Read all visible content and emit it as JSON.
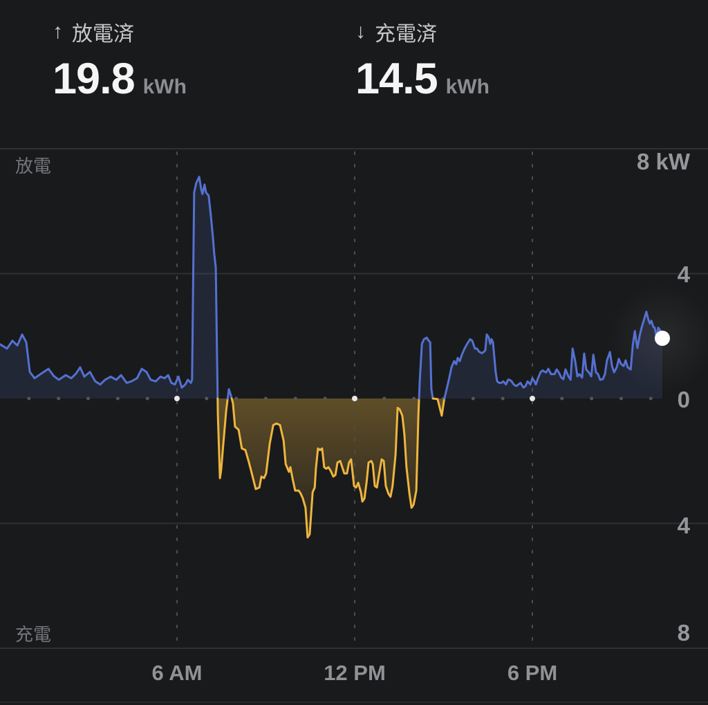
{
  "header": {
    "stats": [
      {
        "arrow": "↑",
        "label": "放電済",
        "value": "19.8",
        "unit": "kWh"
      },
      {
        "arrow": "↓",
        "label": "充電済",
        "value": "14.5",
        "unit": "kWh"
      }
    ]
  },
  "chart": {
    "region_labels": {
      "top": "放電",
      "bottom": "充電"
    },
    "y_axis_labels": [
      "8 kW",
      "4",
      "0",
      "4",
      "8"
    ],
    "x_axis_labels": [
      "6 AM",
      "12 PM",
      "6 PM"
    ]
  },
  "chart_data": {
    "type": "area",
    "unit": "kW",
    "x_axis": {
      "unit": "hours",
      "range": [
        0,
        24
      ],
      "ticks": [
        {
          "hour": 6,
          "label": "6 AM"
        },
        {
          "hour": 12,
          "label": "12 PM"
        },
        {
          "hour": 18,
          "label": "6 PM"
        }
      ]
    },
    "y_axis": {
      "range": [
        -8,
        8
      ],
      "gridlines_kw": [
        8,
        4,
        0,
        -4,
        -8
      ],
      "labels": [
        "8 kW",
        "4",
        "0",
        "4",
        "8"
      ]
    },
    "current_point": {
      "hour": 22.39,
      "kw": 1.93
    },
    "colors": {
      "discharge": "#5571d0",
      "discharge_fill": "rgba(85,113,208,0.15)",
      "charge": "#eeb63e",
      "grid": "#2e3033",
      "dotted": "#4b4d52",
      "zero_dot": "#54565b",
      "zero_dot_major": "#e9e9ea",
      "current_dot": "#ffffff"
    },
    "series": [
      {
        "name": "battery_power_kw",
        "points": [
          [
            0,
            1.75
          ],
          [
            0.26,
            1.6
          ],
          [
            0.44,
            1.85
          ],
          [
            0.61,
            1.7
          ],
          [
            0.77,
            2.05
          ],
          [
            0.91,
            1.8
          ],
          [
            1.03,
            0.85
          ],
          [
            1.19,
            0.65
          ],
          [
            1.42,
            0.8
          ],
          [
            1.66,
            0.95
          ],
          [
            1.84,
            0.72
          ],
          [
            2.01,
            0.6
          ],
          [
            2.24,
            0.75
          ],
          [
            2.43,
            0.65
          ],
          [
            2.59,
            0.8
          ],
          [
            2.73,
            1
          ],
          [
            2.87,
            0.7
          ],
          [
            3.06,
            0.85
          ],
          [
            3.24,
            0.55
          ],
          [
            3.41,
            0.45
          ],
          [
            3.57,
            0.6
          ],
          [
            3.76,
            0.7
          ],
          [
            3.95,
            0.6
          ],
          [
            4.11,
            0.75
          ],
          [
            4.3,
            0.5
          ],
          [
            4.46,
            0.55
          ],
          [
            4.65,
            0.65
          ],
          [
            4.81,
            0.95
          ],
          [
            4.97,
            0.85
          ],
          [
            5.11,
            0.6
          ],
          [
            5.28,
            0.55
          ],
          [
            5.44,
            0.7
          ],
          [
            5.58,
            0.65
          ],
          [
            5.7,
            0.75
          ],
          [
            5.81,
            0.5
          ],
          [
            5.93,
            0.45
          ],
          [
            6.05,
            0.7
          ],
          [
            6.16,
            0.35
          ],
          [
            6.28,
            0.45
          ],
          [
            6.37,
            0.6
          ],
          [
            6.47,
            0.5
          ],
          [
            6.51,
            0.6
          ],
          [
            6.58,
            6.6
          ],
          [
            6.65,
            6.9
          ],
          [
            6.75,
            7.1
          ],
          [
            6.82,
            6.7
          ],
          [
            6.86,
            6.55
          ],
          [
            6.93,
            6.85
          ],
          [
            6.98,
            6.6
          ],
          [
            7.07,
            6.5
          ],
          [
            7.14,
            5.9
          ],
          [
            7.21,
            5.2
          ],
          [
            7.26,
            4.6
          ],
          [
            7.31,
            4.2
          ],
          [
            7.35,
            1.5
          ],
          [
            7.38,
            -0.5
          ],
          [
            7.45,
            -2.55
          ],
          [
            7.49,
            -2.3
          ],
          [
            7.56,
            -1.5
          ],
          [
            7.66,
            -0.4
          ],
          [
            7.75,
            0.3
          ],
          [
            7.82,
            0.1
          ],
          [
            7.89,
            -0.15
          ],
          [
            7.96,
            -0.9
          ],
          [
            8.08,
            -1
          ],
          [
            8.19,
            -1.6
          ],
          [
            8.31,
            -1.65
          ],
          [
            8.43,
            -2.05
          ],
          [
            8.54,
            -2.45
          ],
          [
            8.66,
            -2.9
          ],
          [
            8.78,
            -2.85
          ],
          [
            8.85,
            -2.5
          ],
          [
            8.94,
            -2.55
          ],
          [
            9.01,
            -2.4
          ],
          [
            9.13,
            -1.45
          ],
          [
            9.25,
            -0.85
          ],
          [
            9.36,
            -0.8
          ],
          [
            9.48,
            -0.85
          ],
          [
            9.6,
            -1.35
          ],
          [
            9.67,
            -2.1
          ],
          [
            9.78,
            -2.35
          ],
          [
            9.83,
            -2.2
          ],
          [
            9.9,
            -2.55
          ],
          [
            9.99,
            -2.95
          ],
          [
            10.11,
            -2.95
          ],
          [
            10.18,
            -3.05
          ],
          [
            10.25,
            -3.2
          ],
          [
            10.34,
            -3.5
          ],
          [
            10.41,
            -4.45
          ],
          [
            10.48,
            -4.35
          ],
          [
            10.58,
            -3
          ],
          [
            10.65,
            -2.85
          ],
          [
            10.69,
            -2.25
          ],
          [
            10.76,
            -1.6
          ],
          [
            10.83,
            -1.65
          ],
          [
            10.9,
            -1.6
          ],
          [
            10.97,
            -2.2
          ],
          [
            11.04,
            -2.25
          ],
          [
            11.11,
            -2.2
          ],
          [
            11.18,
            -2.3
          ],
          [
            11.28,
            -2.5
          ],
          [
            11.35,
            -2.45
          ],
          [
            11.42,
            -2.05
          ],
          [
            11.51,
            -2
          ],
          [
            11.58,
            -2.2
          ],
          [
            11.65,
            -2.4
          ],
          [
            11.74,
            -2.4
          ],
          [
            11.81,
            -2.05
          ],
          [
            11.88,
            -1.95
          ],
          [
            11.98,
            -2.8
          ],
          [
            12.05,
            -2.85
          ],
          [
            12.12,
            -2.7
          ],
          [
            12.21,
            -3
          ],
          [
            12.26,
            -3.3
          ],
          [
            12.33,
            -3.2
          ],
          [
            12.4,
            -2.7
          ],
          [
            12.47,
            -2.05
          ],
          [
            12.56,
            -2
          ],
          [
            12.61,
            -2.1
          ],
          [
            12.68,
            -2.8
          ],
          [
            12.75,
            -2.85
          ],
          [
            12.82,
            -2.45
          ],
          [
            12.91,
            -1.95
          ],
          [
            12.98,
            -2
          ],
          [
            13.05,
            -2.8
          ],
          [
            13.14,
            -3.05
          ],
          [
            13.21,
            -3.15
          ],
          [
            13.28,
            -2.8
          ],
          [
            13.38,
            -1.8
          ],
          [
            13.45,
            -0.3
          ],
          [
            13.52,
            -0.35
          ],
          [
            13.61,
            -0.55
          ],
          [
            13.68,
            -1.15
          ],
          [
            13.75,
            -2.2
          ],
          [
            13.85,
            -3.05
          ],
          [
            13.92,
            -3.5
          ],
          [
            13.99,
            -3.4
          ],
          [
            14.08,
            -2.95
          ],
          [
            14.15,
            -0.55
          ],
          [
            14.2,
            0.6
          ],
          [
            14.27,
            1.75
          ],
          [
            14.34,
            1.9
          ],
          [
            14.43,
            1.95
          ],
          [
            14.5,
            1.85
          ],
          [
            14.55,
            1.8
          ],
          [
            14.59,
            0.3
          ],
          [
            14.64,
            0
          ],
          [
            14.8,
            -0.02
          ],
          [
            14.94,
            -0.55
          ],
          [
            15.02,
            -0.05
          ],
          [
            15.08,
            0.2
          ],
          [
            15.18,
            0.6
          ],
          [
            15.27,
            1
          ],
          [
            15.36,
            1.2
          ],
          [
            15.43,
            1.1
          ],
          [
            15.48,
            1.3
          ],
          [
            15.55,
            1.2
          ],
          [
            15.62,
            1.4
          ],
          [
            15.71,
            1.6
          ],
          [
            15.83,
            1.8
          ],
          [
            15.9,
            1.9
          ],
          [
            15.97,
            1.85
          ],
          [
            16.06,
            1.6
          ],
          [
            16.13,
            1.6
          ],
          [
            16.2,
            1.5
          ],
          [
            16.3,
            1.45
          ],
          [
            16.37,
            1.5
          ],
          [
            16.41,
            1.55
          ],
          [
            16.46,
            2.05
          ],
          [
            16.53,
            1.95
          ],
          [
            16.58,
            1.75
          ],
          [
            16.62,
            1.9
          ],
          [
            16.67,
            1.8
          ],
          [
            16.76,
            0.85
          ],
          [
            16.81,
            0.55
          ],
          [
            16.88,
            0.5
          ],
          [
            16.95,
            0.5
          ],
          [
            17.02,
            0.55
          ],
          [
            17.11,
            0.45
          ],
          [
            17.18,
            0.6
          ],
          [
            17.23,
            0.6
          ],
          [
            17.3,
            0.55
          ],
          [
            17.37,
            0.45
          ],
          [
            17.46,
            0.4
          ],
          [
            17.53,
            0.45
          ],
          [
            17.6,
            0.5
          ],
          [
            17.7,
            0.35
          ],
          [
            17.77,
            0.4
          ],
          [
            17.84,
            0.55
          ],
          [
            17.93,
            0.45
          ],
          [
            18,
            0.65
          ],
          [
            18.07,
            0.55
          ],
          [
            18.12,
            0.45
          ],
          [
            18.19,
            0.65
          ],
          [
            18.28,
            0.85
          ],
          [
            18.35,
            0.9
          ],
          [
            18.42,
            0.85
          ],
          [
            18.47,
            0.84
          ],
          [
            18.54,
            0.95
          ],
          [
            18.63,
            0.78
          ],
          [
            18.75,
            0.78
          ],
          [
            18.82,
            0.93
          ],
          [
            18.89,
            0.84
          ],
          [
            18.98,
            0.67
          ],
          [
            19.05,
            0.62
          ],
          [
            19.12,
            0.93
          ],
          [
            19.22,
            0.71
          ],
          [
            19.29,
            0.6
          ],
          [
            19.36,
            1.6
          ],
          [
            19.45,
            1.18
          ],
          [
            19.52,
            0.71
          ],
          [
            19.59,
            0.78
          ],
          [
            19.68,
            0.67
          ],
          [
            19.75,
            1.44
          ],
          [
            19.82,
            0.93
          ],
          [
            19.92,
            0.82
          ],
          [
            19.99,
            0.71
          ],
          [
            20.06,
            1.4
          ],
          [
            20.15,
            0.84
          ],
          [
            20.22,
            0.78
          ],
          [
            20.29,
            0.6
          ],
          [
            20.38,
            0.62
          ],
          [
            20.45,
            0.78
          ],
          [
            20.52,
            1.22
          ],
          [
            20.62,
            1.49
          ],
          [
            20.69,
            1.04
          ],
          [
            20.76,
            0.84
          ],
          [
            20.85,
            1
          ],
          [
            20.92,
            1.27
          ],
          [
            20.99,
            1.11
          ],
          [
            21.08,
            1.04
          ],
          [
            21.15,
            1.22
          ],
          [
            21.22,
            1
          ],
          [
            21.32,
            0.93
          ],
          [
            21.39,
            1.71
          ],
          [
            21.46,
            2.16
          ],
          [
            21.5,
            1.89
          ],
          [
            21.55,
            1.62
          ],
          [
            21.62,
            2
          ],
          [
            21.69,
            2.27
          ],
          [
            21.78,
            2.56
          ],
          [
            21.85,
            2.78
          ],
          [
            21.92,
            2.51
          ],
          [
            21.97,
            2.4
          ],
          [
            22.02,
            2.49
          ],
          [
            22.09,
            2.29
          ],
          [
            22.13,
            2.27
          ],
          [
            22.2,
            1.96
          ],
          [
            22.25,
            2.27
          ],
          [
            22.32,
            2.18
          ],
          [
            22.39,
            1.93
          ]
        ]
      }
    ]
  }
}
